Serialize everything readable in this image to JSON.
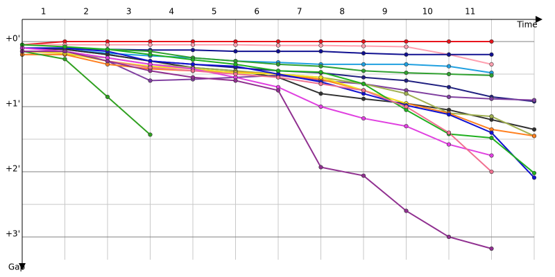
{
  "chart_data": {
    "type": "line",
    "x_label": "Time",
    "y_label": "Gap",
    "x": [
      0,
      1,
      2,
      3,
      4,
      5,
      6,
      7,
      8,
      9,
      10,
      11,
      12
    ],
    "xlim": [
      0,
      12
    ],
    "ylim": [
      3.35,
      -0.34
    ],
    "xticks": [
      {
        "value": 0.5,
        "label": "1"
      },
      {
        "value": 1.5,
        "label": "2"
      },
      {
        "value": 2.5,
        "label": "3"
      },
      {
        "value": 3.5,
        "label": "4"
      },
      {
        "value": 4.5,
        "label": "5"
      },
      {
        "value": 5.5,
        "label": "6"
      },
      {
        "value": 6.5,
        "label": "7"
      },
      {
        "value": 7.5,
        "label": "8"
      },
      {
        "value": 8.5,
        "label": "9"
      },
      {
        "value": 9.5,
        "label": "10"
      },
      {
        "value": 10.5,
        "label": "11"
      }
    ],
    "yticks": [
      {
        "value": 0,
        "label": "+0'"
      },
      {
        "value": 1,
        "label": "+1'"
      },
      {
        "value": 2,
        "label": "+2'"
      },
      {
        "value": 3,
        "label": "+3'"
      }
    ],
    "grid": true,
    "series": [
      {
        "color": "#e8141c",
        "values": [
          0.05,
          0,
          0,
          0,
          0,
          0,
          0,
          0,
          0,
          0,
          0,
          0,
          null
        ]
      },
      {
        "color": "#ffa0b0",
        "values": [
          0.05,
          0.05,
          0.05,
          0.05,
          0.05,
          0.05,
          0.06,
          0.06,
          0.07,
          0.08,
          0.2,
          0.35,
          null
        ]
      },
      {
        "color": "#101090",
        "values": [
          0.1,
          0.12,
          0.12,
          0.13,
          0.13,
          0.15,
          0.15,
          0.15,
          0.18,
          0.2,
          0.2,
          0.2,
          null
        ]
      },
      {
        "color": "#20a0e0",
        "values": [
          0.1,
          0.12,
          0.18,
          0.22,
          0.25,
          0.3,
          0.32,
          0.35,
          0.35,
          0.35,
          0.38,
          0.48,
          null
        ]
      },
      {
        "color": "#30a030",
        "values": [
          0.1,
          0.1,
          0.12,
          0.15,
          0.25,
          0.3,
          0.35,
          0.38,
          0.45,
          0.48,
          0.5,
          0.52,
          null
        ]
      },
      {
        "color": "#202080",
        "values": [
          0.1,
          0.12,
          0.2,
          0.3,
          0.35,
          0.4,
          0.45,
          0.48,
          0.55,
          0.6,
          0.7,
          0.85,
          0.92
        ]
      },
      {
        "color": "#8040a0",
        "values": [
          0.15,
          0.15,
          0.3,
          0.6,
          0.58,
          0.55,
          0.52,
          0.6,
          0.65,
          0.75,
          0.85,
          0.88,
          0.9
        ]
      },
      {
        "color": "#303030",
        "values": [
          0.1,
          0.12,
          0.2,
          0.3,
          0.4,
          0.45,
          0.55,
          0.8,
          0.88,
          0.95,
          1.05,
          1.2,
          1.35
        ]
      },
      {
        "color": "#a0b050",
        "values": [
          0.2,
          0.2,
          0.25,
          0.35,
          0.4,
          0.45,
          0.5,
          0.55,
          0.65,
          0.8,
          1.1,
          1.15,
          1.45
        ]
      },
      {
        "color": "#ff8020",
        "values": [
          0.2,
          0.2,
          0.35,
          0.42,
          0.45,
          0.47,
          0.5,
          0.58,
          0.75,
          0.95,
          1.1,
          1.35,
          1.45
        ]
      },
      {
        "color": "#f0e020",
        "values": [
          0.15,
          0.18,
          0.3,
          0.38,
          0.42,
          0.48,
          0.5,
          0.55,
          0.75,
          0.95,
          null,
          null,
          null
        ]
      },
      {
        "color": "#1010d0",
        "values": [
          0.1,
          0.1,
          0.15,
          0.3,
          0.35,
          0.38,
          0.5,
          0.62,
          0.8,
          0.98,
          1.12,
          1.4,
          2.09
        ]
      },
      {
        "color": "#20b020",
        "values": [
          0.05,
          0.08,
          0.12,
          0.2,
          0.28,
          0.35,
          0.45,
          0.47,
          0.65,
          1.05,
          1.42,
          1.48,
          2.02
        ]
      },
      {
        "color": "#30a020",
        "values": [
          0.15,
          0.27,
          0.85,
          1.43,
          null,
          null,
          null,
          null,
          null,
          null,
          null,
          null,
          null
        ]
      },
      {
        "color": "#e040e0",
        "values": [
          0.1,
          0.15,
          0.25,
          0.35,
          0.42,
          0.55,
          0.7,
          1.0,
          1.18,
          1.3,
          1.58,
          1.75,
          null
        ]
      },
      {
        "color": "#f07090",
        "values": [
          0.15,
          0.15,
          0.3,
          0.4,
          0.45,
          0.5,
          0.55,
          0.65,
          0.75,
          1.0,
          1.4,
          2.0,
          null
        ]
      },
      {
        "color": "#903090",
        "values": [
          0.15,
          0.15,
          0.3,
          0.45,
          0.55,
          0.6,
          0.75,
          1.93,
          2.06,
          2.6,
          3.0,
          3.18,
          null
        ]
      }
    ]
  }
}
